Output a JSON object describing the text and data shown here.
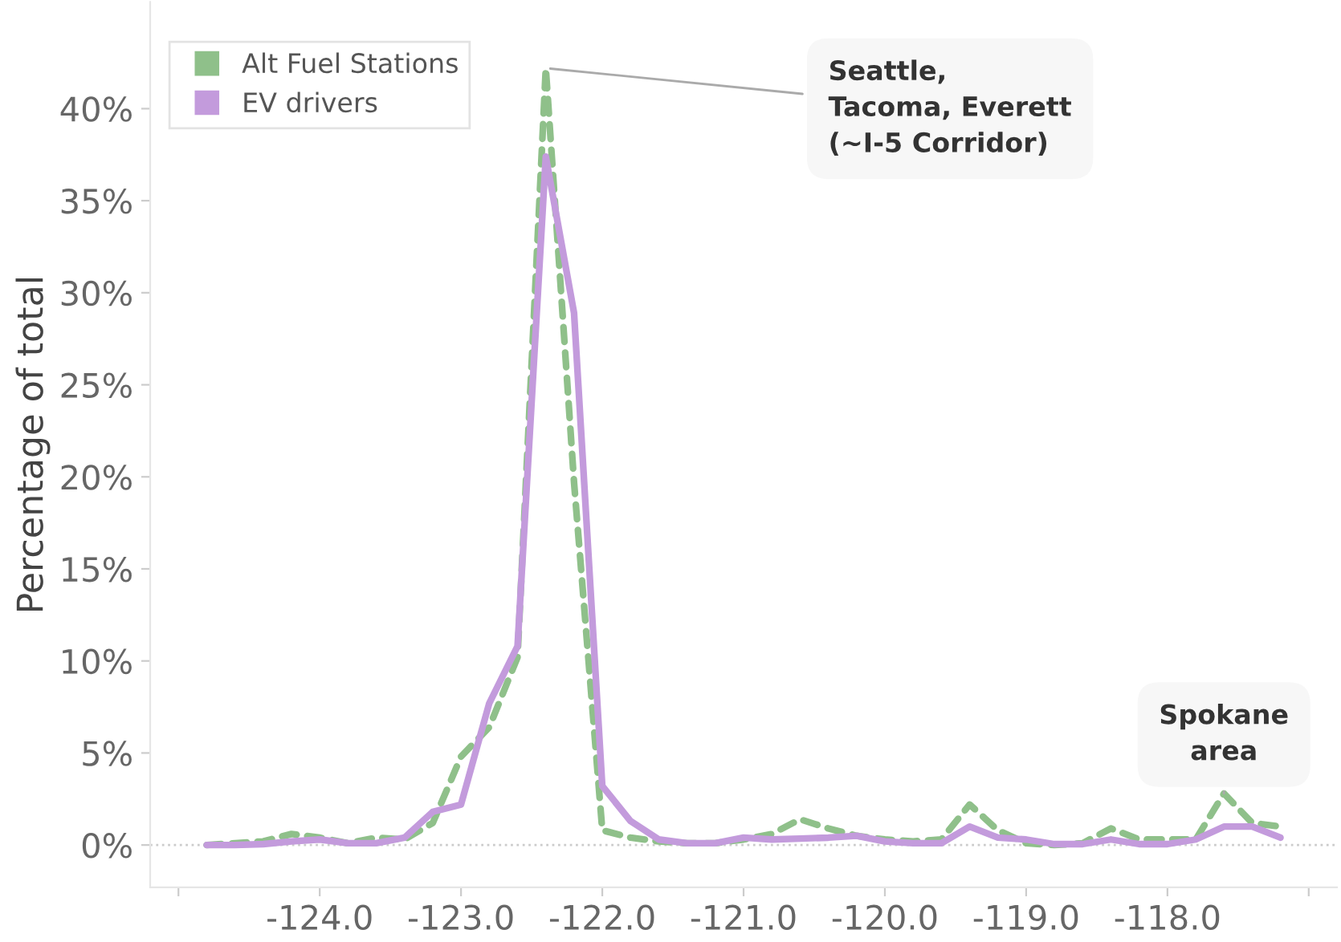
{
  "chart_data": {
    "type": "line",
    "ylabel": "Percentage of total",
    "x": [
      -124.8,
      -124.6,
      -124.4,
      -124.2,
      -124.0,
      -123.8,
      -123.6,
      -123.4,
      -123.2,
      -123.0,
      -122.8,
      -122.6,
      -122.4,
      -122.2,
      -122.0,
      -121.8,
      -121.6,
      -121.4,
      -121.2,
      -121.0,
      -120.8,
      -120.6,
      -120.4,
      -120.2,
      -120.0,
      -119.8,
      -119.6,
      -119.4,
      -119.2,
      -119.0,
      -118.8,
      -118.6,
      -118.4,
      -118.2,
      -118.0,
      -117.8,
      -117.6,
      -117.4,
      -117.2
    ],
    "series": [
      {
        "name": "Alt Fuel Stations",
        "color": "#8fc08a",
        "line_style": "dashed",
        "values": [
          0,
          0.1,
          0.2,
          0.6,
          0.4,
          0.1,
          0.4,
          0.3,
          1.2,
          4.8,
          6.4,
          10.2,
          42.2,
          19.7,
          0.8,
          0.4,
          0.2,
          0.1,
          0.1,
          0.3,
          0.6,
          1.4,
          0.9,
          0.5,
          0.3,
          0.2,
          0.3,
          2.2,
          0.8,
          0.1,
          0,
          0.1,
          0.9,
          0.3,
          0.3,
          0.3,
          2.8,
          1.2,
          1.0
        ]
      },
      {
        "name": "EV drivers",
        "color": "#c39bdc",
        "line_style": "solid",
        "values": [
          0,
          0,
          0.05,
          0.2,
          0.3,
          0.1,
          0.1,
          0.4,
          1.8,
          2.2,
          7.7,
          10.8,
          37.4,
          28.9,
          3.2,
          1.3,
          0.3,
          0.1,
          0.1,
          0.4,
          0.3,
          0.35,
          0.4,
          0.5,
          0.2,
          0.1,
          0.1,
          1.0,
          0.4,
          0.3,
          0.05,
          0.05,
          0.3,
          0.05,
          0.05,
          0.3,
          1.0,
          1.0,
          0.4
        ]
      }
    ],
    "xlim": [
      -125.2,
      -116.8
    ],
    "xticks": [
      {
        "value": -125,
        "label": null
      },
      {
        "value": -124,
        "label": "-124.0"
      },
      {
        "value": -123,
        "label": "-123.0"
      },
      {
        "value": -122,
        "label": "-122.0"
      },
      {
        "value": -121,
        "label": "-121.0"
      },
      {
        "value": -120,
        "label": "-120.0"
      },
      {
        "value": -119,
        "label": "-119.0"
      },
      {
        "value": -118,
        "label": "-118.0"
      },
      {
        "value": -117,
        "label": null
      }
    ],
    "ylim": [
      -2.3,
      45.8
    ],
    "yticks": [
      {
        "value": 0,
        "label": "0%"
      },
      {
        "value": 5,
        "label": "5%"
      },
      {
        "value": 10,
        "label": "10%"
      },
      {
        "value": 15,
        "label": "15%"
      },
      {
        "value": 20,
        "label": "20%"
      },
      {
        "value": 25,
        "label": "25%"
      },
      {
        "value": 30,
        "label": "30%"
      },
      {
        "value": 35,
        "label": "35%"
      },
      {
        "value": 40,
        "label": "40%"
      }
    ],
    "ref_lines": [
      {
        "axis": "y",
        "value": 0,
        "color": "#cccccc",
        "line_style": "dotted"
      }
    ],
    "annotations": [
      {
        "text": "Seattle,\nTacoma, Everett\n(~I-5 Corridor)",
        "x": -122.4,
        "y": 42.2
      },
      {
        "text": "Spokane\narea",
        "x": -117.6,
        "y": 2.8
      }
    ],
    "grid": false,
    "legend": "top left"
  }
}
